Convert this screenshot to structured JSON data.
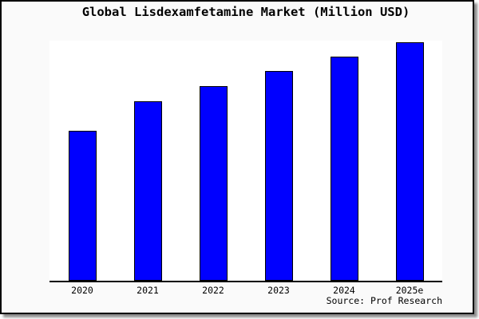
{
  "chart_data": {
    "type": "bar",
    "title": "Global Lisdexamfetamine Market (Million USD)",
    "categories": [
      "2020",
      "2021",
      "2022",
      "2023",
      "2024",
      "2025e"
    ],
    "values": [
      62.5,
      74.8,
      81.1,
      87.4,
      93.4,
      99.3
    ],
    "value_note": "no y-axis tick labels shown; values estimated as percent of full plot height (tallest bar 2025e ~99)",
    "xlabel": "",
    "ylabel": "",
    "ylim": [
      0,
      100
    ],
    "grid": false,
    "legend": false,
    "axis_style": "bottom spine only, no tick marks",
    "source_label": "Source: Prof Research"
  },
  "colors": {
    "bar_fill": "#0000ff",
    "bar_border": "#000000",
    "canvas_bg": "#fafafa",
    "plot_bg": "#ffffff",
    "frame_border": "#000000",
    "text": "#000000"
  }
}
